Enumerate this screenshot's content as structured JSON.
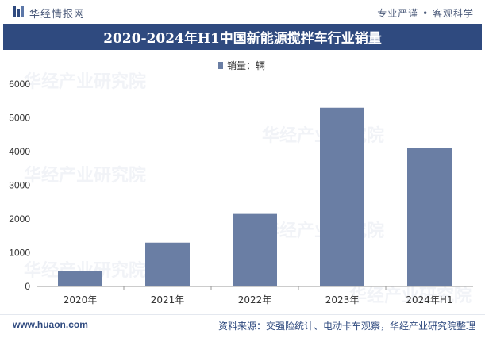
{
  "header": {
    "brand": "华经情报网",
    "slogan": "专业严谨 • 客观科学"
  },
  "chart_data": {
    "type": "bar",
    "title": "2020-2024年H1中国新能源搅拌车行业销量",
    "categories": [
      "2020年",
      "2021年",
      "2022年",
      "2023年",
      "2024年H1"
    ],
    "series": [
      {
        "name": "销量：辆",
        "values": [
          450,
          1300,
          2150,
          5300,
          4100
        ]
      }
    ],
    "ylim": [
      0,
      6000
    ],
    "yticks": [
      0,
      1000,
      2000,
      3000,
      4000,
      5000,
      6000
    ],
    "legend_position": "top-center",
    "grid": false,
    "bar_color": "#6a7ea4"
  },
  "watermark": {
    "cn": "华经产业研究院",
    "en": "www.huaon.com"
  },
  "footer": {
    "url": "www.huaon.com",
    "source": "资料来源：交强险统计、电动卡车观察，华经产业研究院整理"
  }
}
